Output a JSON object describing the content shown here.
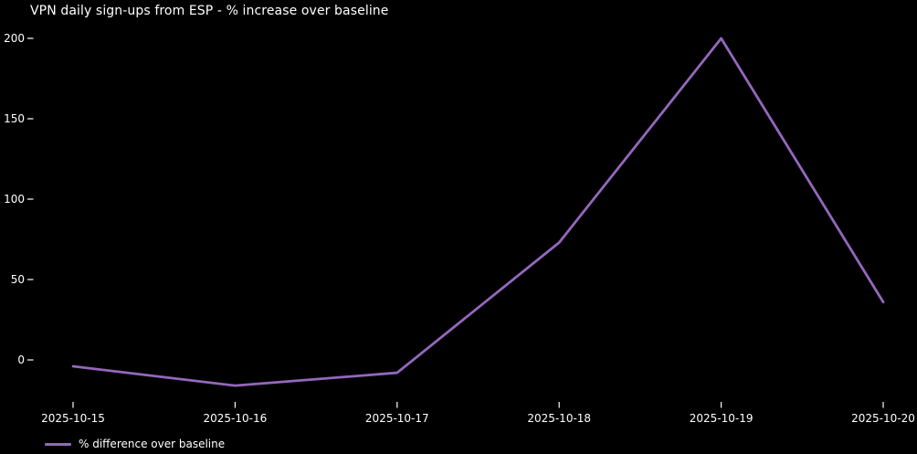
{
  "window": {
    "background": "#000000",
    "text_color": "#ffffff"
  },
  "chart_data": {
    "type": "line",
    "title": "VPN daily sign-ups from ESP - % increase over baseline",
    "x": [
      "2025-10-15",
      "2025-10-16",
      "2025-10-17",
      "2025-10-18",
      "2025-10-19",
      "2025-10-20"
    ],
    "series": [
      {
        "name": "% difference over baseline",
        "color": "#9467bd",
        "values": [
          -4,
          -16,
          -8,
          73,
          200,
          36
        ]
      }
    ],
    "xlabel": "",
    "ylabel": "",
    "yticks": [
      0,
      50,
      100,
      150,
      200
    ],
    "ylim": [
      -24,
      208
    ],
    "grid": false,
    "markers": false,
    "legend_position": "lower-left",
    "background_color": "#000000",
    "text_color": "#ffffff"
  }
}
